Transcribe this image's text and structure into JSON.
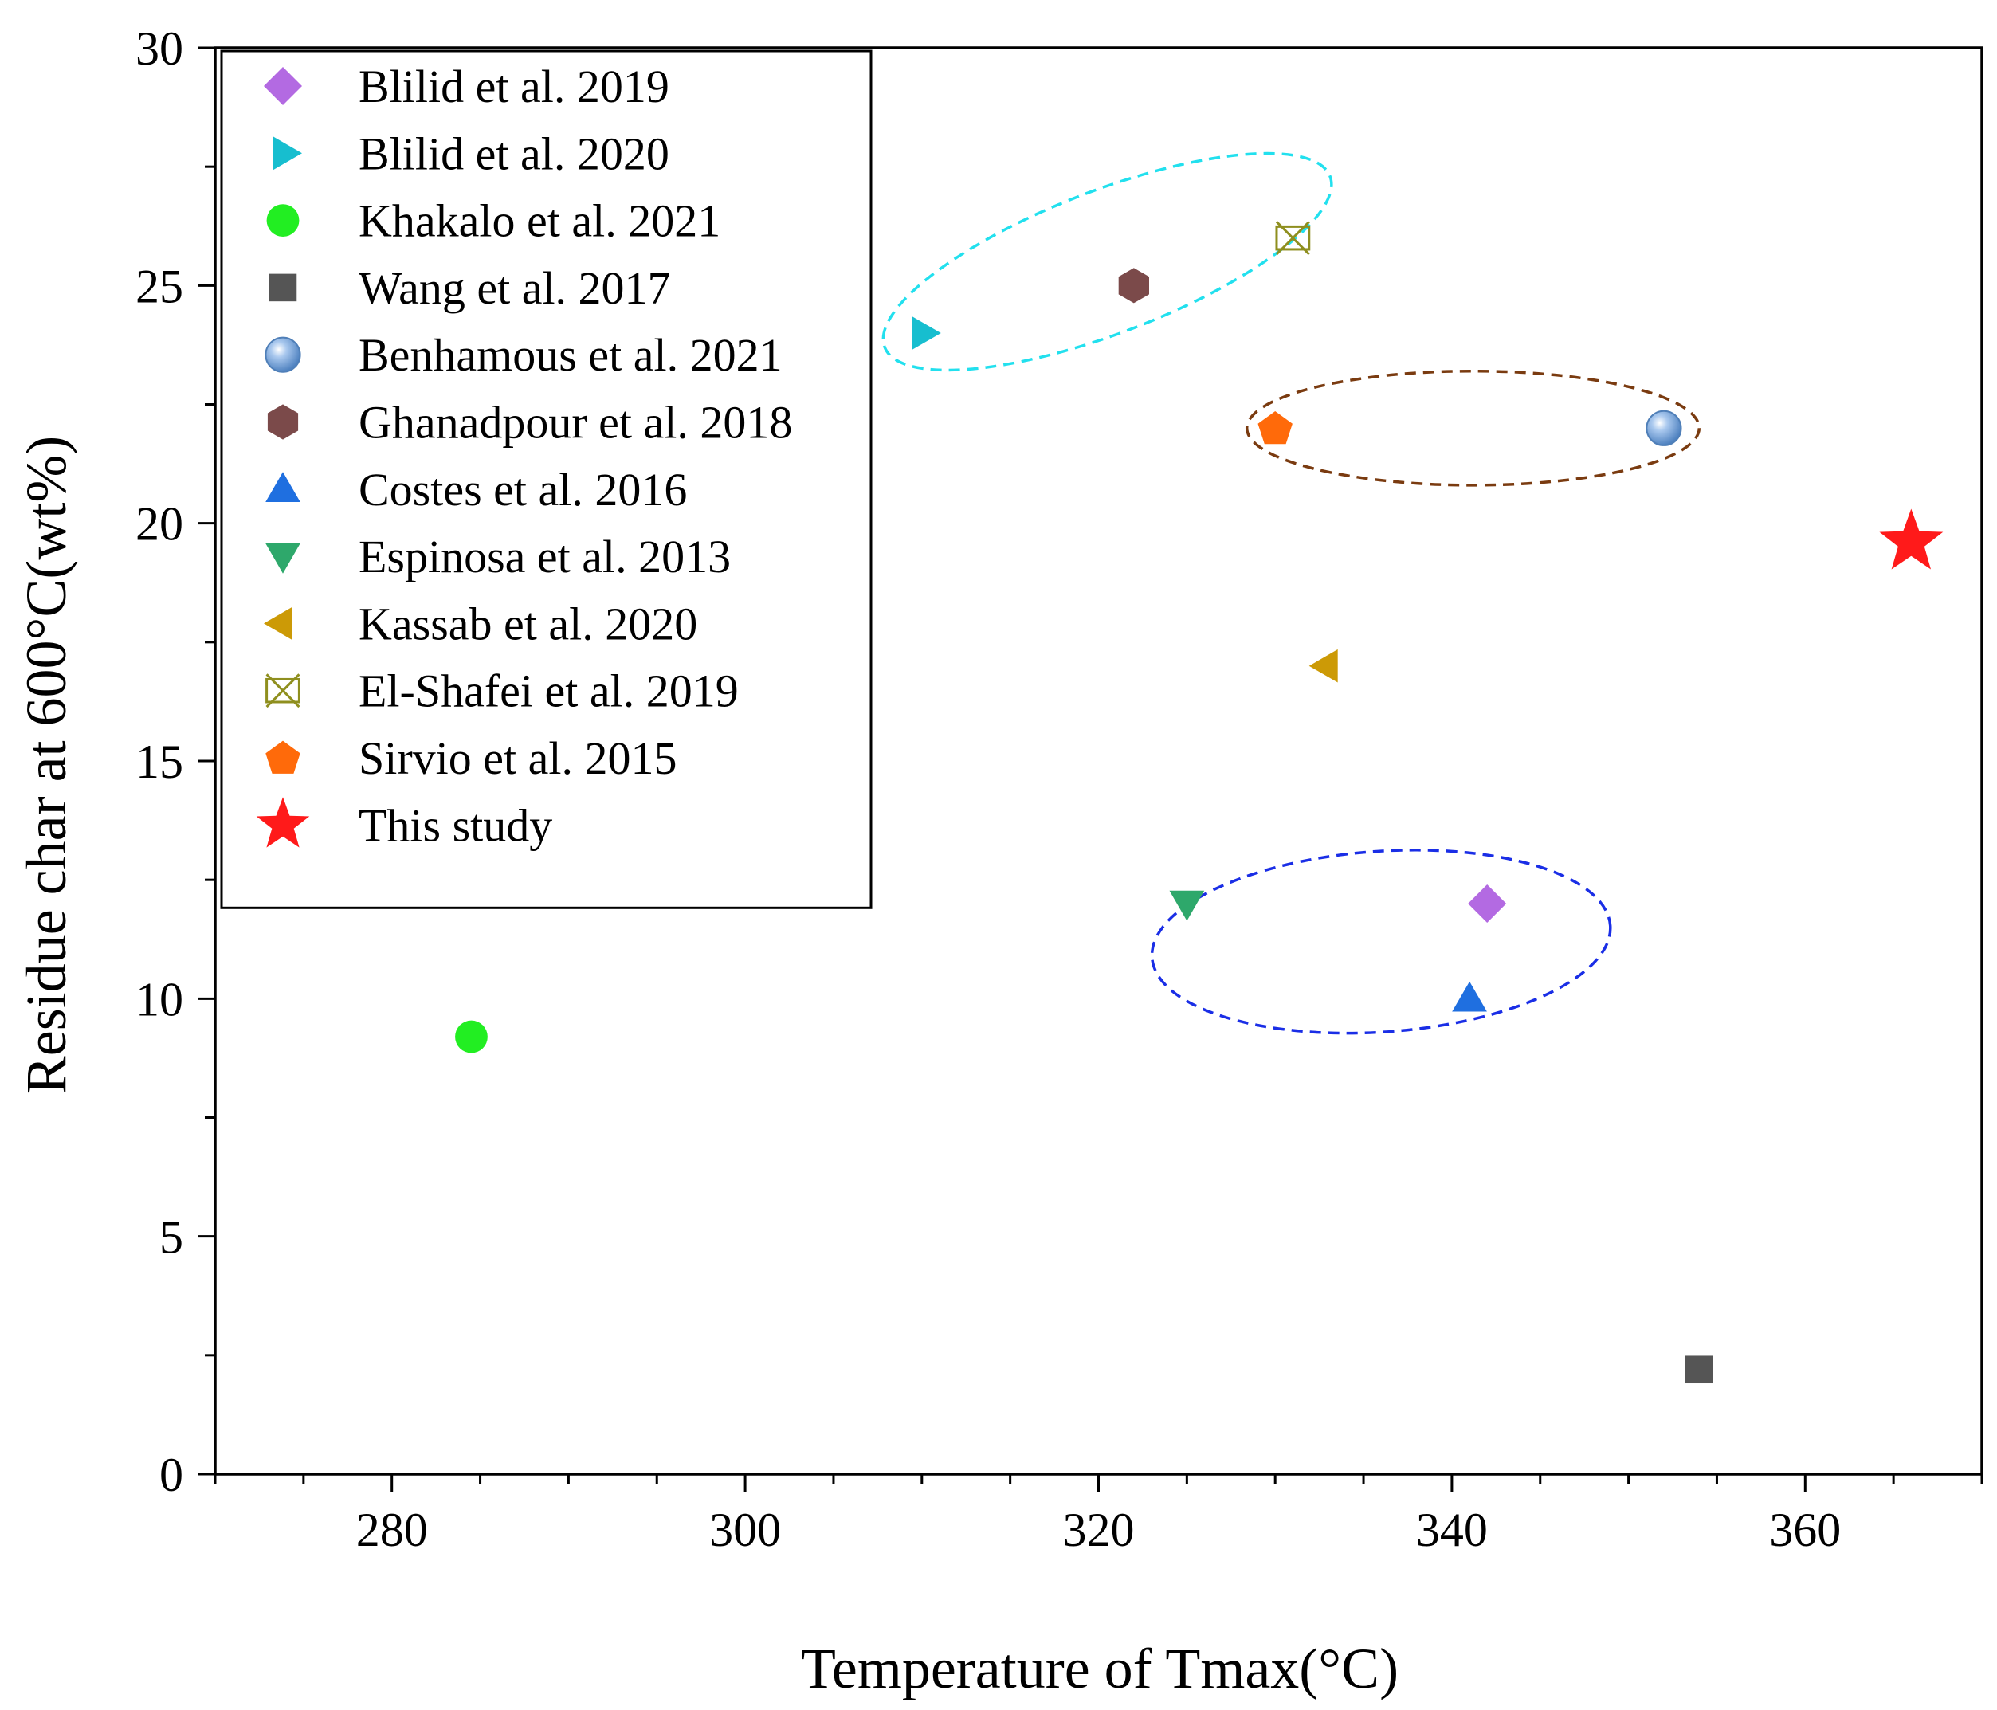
{
  "chart_data": {
    "type": "scatter",
    "title": "",
    "xlabel": "Temperature of Tmax(°C)",
    "ylabel": "Residue char at 600°C(wt%)",
    "xlim": [
      270,
      370
    ],
    "ylim": [
      0,
      30
    ],
    "xticks": [
      280,
      300,
      320,
      340,
      360
    ],
    "yticks": [
      0,
      5,
      10,
      15,
      20,
      25,
      30
    ],
    "grid": false,
    "legend_position": "top-left",
    "series": [
      {
        "name": "Blilid et al. 2019",
        "marker": "diamond",
        "color": "#b36ae2",
        "points": [
          {
            "x": 342,
            "y": 12
          }
        ]
      },
      {
        "name": "Blilid et al. 2020",
        "marker": "triangle-right",
        "color": "#17becf",
        "points": [
          {
            "x": 310,
            "y": 24
          }
        ]
      },
      {
        "name": "Khakalo et al. 2021",
        "marker": "circle",
        "color": "#22ee22",
        "points": [
          {
            "x": 284.5,
            "y": 9.2
          }
        ]
      },
      {
        "name": "Wang et al. 2017",
        "marker": "square",
        "color": "#555555",
        "points": [
          {
            "x": 354,
            "y": 2.2
          }
        ]
      },
      {
        "name": "Benhamous et al. 2021",
        "marker": "sphere",
        "color": "#6d9fd6",
        "points": [
          {
            "x": 352,
            "y": 22
          }
        ]
      },
      {
        "name": "Ghanadpour et al. 2018",
        "marker": "hexagon",
        "color": "#7b4a4a",
        "points": [
          {
            "x": 322,
            "y": 25
          }
        ]
      },
      {
        "name": "Costes et al. 2016",
        "marker": "triangle-up",
        "color": "#1f6fe0",
        "points": [
          {
            "x": 341,
            "y": 10
          }
        ]
      },
      {
        "name": "Espinosa et al. 2013",
        "marker": "triangle-down",
        "color": "#2ea86b",
        "points": [
          {
            "x": 325,
            "y": 12
          }
        ]
      },
      {
        "name": "Kassab et al. 2020",
        "marker": "triangle-left",
        "color": "#cc9a06",
        "points": [
          {
            "x": 333,
            "y": 17
          }
        ]
      },
      {
        "name": "El-Shafei et al. 2019",
        "marker": "x-square",
        "color": "#8f8f1f",
        "points": [
          {
            "x": 331,
            "y": 26
          }
        ]
      },
      {
        "name": "Sirvio et al. 2015",
        "marker": "pentagon",
        "color": "#ff6a0a",
        "points": [
          {
            "x": 330,
            "y": 22
          }
        ]
      },
      {
        "name": "This study",
        "marker": "star",
        "color": "#ff1a1a",
        "points": [
          {
            "x": 366,
            "y": 19.6
          }
        ]
      }
    ],
    "annotations": [
      {
        "type": "dashed-ellipse",
        "color": "#22e0ee",
        "encloses": [
          "Blilid et al. 2020",
          "Ghanadpour et al. 2018",
          "El-Shafei et al. 2019"
        ],
        "cx": 320.5,
        "cy": 25.5,
        "rx_units": 13.5,
        "ry_units": 1.5,
        "rotation_deg": -21
      },
      {
        "type": "dashed-ellipse",
        "color": "#7a3b10",
        "encloses": [
          "Sirvio et al. 2015",
          "Benhamous et al. 2021"
        ],
        "cx": 341.2,
        "cy": 22,
        "rx_units": 12.8,
        "ry_units": 1.2,
        "rotation_deg": 0
      },
      {
        "type": "dashed-ellipse",
        "color": "#1a2ee6",
        "encloses": [
          "Espinosa et al. 2013",
          "Blilid et al. 2019",
          "Costes et al. 2016"
        ],
        "cx": 336,
        "cy": 11.2,
        "rx_units": 13,
        "ry_units": 1.9,
        "rotation_deg": -4
      }
    ]
  }
}
